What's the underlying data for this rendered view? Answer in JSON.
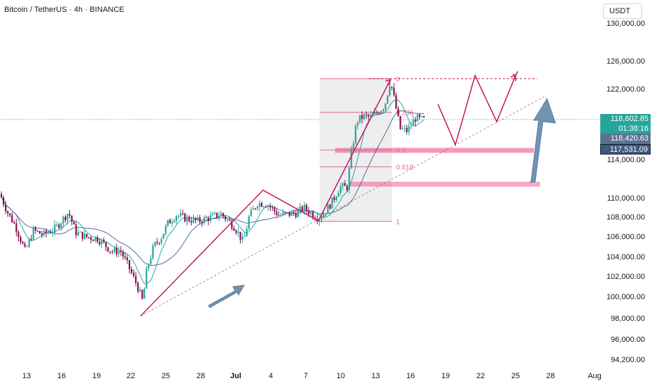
{
  "header": {
    "title": "Bitcoin / TetherUS · 4h · BINANCE"
  },
  "toolbar": {
    "unit_label": "USDT"
  },
  "price_axis": {
    "labels": [
      "130,000.00",
      "126,000.00",
      "122,000.00",
      "114,000.00",
      "110,000.00",
      "108,000.00",
      "106,000.00",
      "104,000.00",
      "102,000.00",
      "100,000.00",
      "98,000.00",
      "96,000.00",
      "94,200.00"
    ],
    "current_price": "118,602.85",
    "countdown": "01:38:16",
    "ma_fast": "118,420.63",
    "ma_slow": "117,531.09"
  },
  "time_axis": {
    "labels": [
      "13",
      "16",
      "19",
      "22",
      "25",
      "28",
      "Jul",
      "4",
      "7",
      "10",
      "13",
      "16",
      "19",
      "22",
      "25",
      "28",
      "Aug"
    ]
  },
  "fib_levels": [
    "0",
    "0.236",
    "0.5",
    "0.618",
    "1"
  ],
  "colors": {
    "up": "#26a69a",
    "down": "#880e4f",
    "drawing": "#c2185b",
    "zone": "#f48fb1",
    "arrow": "#6f93b3",
    "ma1": "#26a69a",
    "ma2": "#4a6fa5"
  },
  "chart_data": {
    "type": "candlestick",
    "symbol": "Bitcoin / TetherUS",
    "interval": "4h",
    "exchange": "BINANCE",
    "y_range": [
      94200,
      130000
    ],
    "x_labels": [
      "13",
      "16",
      "19",
      "22",
      "25",
      "28",
      "Jul",
      "4",
      "7",
      "10",
      "13",
      "16",
      "19",
      "22",
      "25",
      "28",
      "Aug"
    ],
    "close_path": [
      [
        0,
        110500
      ],
      [
        10,
        108600
      ],
      [
        22,
        107000
      ],
      [
        36,
        104200
      ],
      [
        48,
        106500
      ],
      [
        62,
        106000
      ],
      [
        80,
        106800
      ],
      [
        98,
        108500
      ],
      [
        108,
        106300
      ],
      [
        122,
        105800
      ],
      [
        140,
        105600
      ],
      [
        160,
        104200
      ],
      [
        172,
        104300
      ],
      [
        182,
        102800
      ],
      [
        196,
        100500
      ],
      [
        204,
        98700
      ],
      [
        210,
        102300
      ],
      [
        220,
        104800
      ],
      [
        230,
        105700
      ],
      [
        240,
        107300
      ],
      [
        252,
        108200
      ],
      [
        266,
        107800
      ],
      [
        282,
        107500
      ],
      [
        300,
        107900
      ],
      [
        316,
        108300
      ],
      [
        326,
        107600
      ],
      [
        336,
        106800
      ],
      [
        348,
        105200
      ],
      [
        356,
        108000
      ],
      [
        368,
        109500
      ],
      [
        382,
        109400
      ],
      [
        398,
        108200
      ],
      [
        414,
        108300
      ],
      [
        424,
        108400
      ],
      [
        434,
        109000
      ],
      [
        446,
        108300
      ],
      [
        456,
        107800
      ],
      [
        466,
        108700
      ],
      [
        476,
        109800
      ],
      [
        486,
        111300
      ],
      [
        496,
        111200
      ],
      [
        502,
        114800
      ],
      [
        510,
        118500
      ],
      [
        520,
        119000
      ],
      [
        530,
        118900
      ],
      [
        540,
        119400
      ],
      [
        550,
        120200
      ],
      [
        558,
        122900
      ],
      [
        564,
        120700
      ],
      [
        572,
        117600
      ],
      [
        582,
        117400
      ],
      [
        594,
        118800
      ],
      [
        604,
        118600
      ]
    ],
    "fib_retracement": {
      "high": 123100,
      "low": 107500,
      "levels": [
        0,
        0.236,
        0.5,
        0.618,
        1
      ]
    },
    "zones": [
      115300,
      111600
    ],
    "current_price": 118602.85,
    "ma_values": [
      118420.63,
      117531.09
    ]
  }
}
